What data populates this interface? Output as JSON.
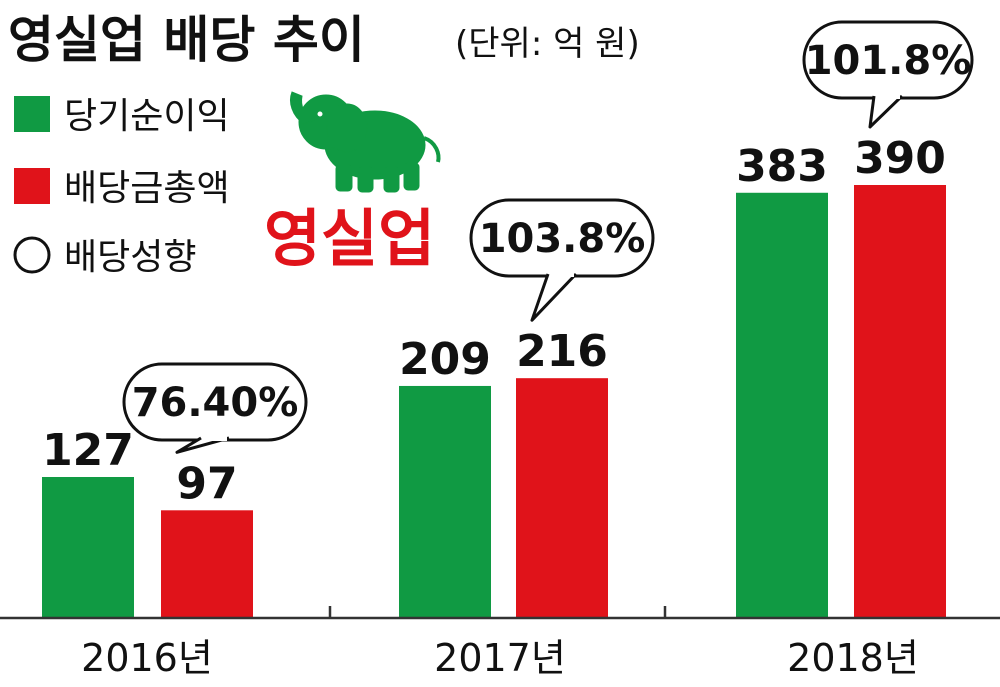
{
  "chart_data": {
    "type": "bar",
    "title": "영실업 배당 추이",
    "unit": "(단위: 억 원)",
    "categories": [
      "2016년",
      "2017년",
      "2018년"
    ],
    "series": [
      {
        "name": "당기순이익",
        "color": "#109a43",
        "values": [
          127,
          209,
          383
        ]
      },
      {
        "name": "배당금총액",
        "color": "#e0131a",
        "values": [
          97,
          216,
          390
        ]
      }
    ],
    "payout_ratio": {
      "name": "배당성향",
      "labels": [
        "76.40%",
        "103.8%",
        "101.8%"
      ]
    },
    "value_labels": {
      "net_income": [
        "127",
        "209",
        "383"
      ],
      "dividend": [
        "97",
        "216",
        "390"
      ]
    },
    "ylim": [
      0,
      400
    ],
    "grid": false,
    "legend": "top-left"
  },
  "logo": {
    "text": "영실업",
    "icon": "elephant-icon",
    "color": "#e0131a",
    "icon_color": "#109a43"
  }
}
